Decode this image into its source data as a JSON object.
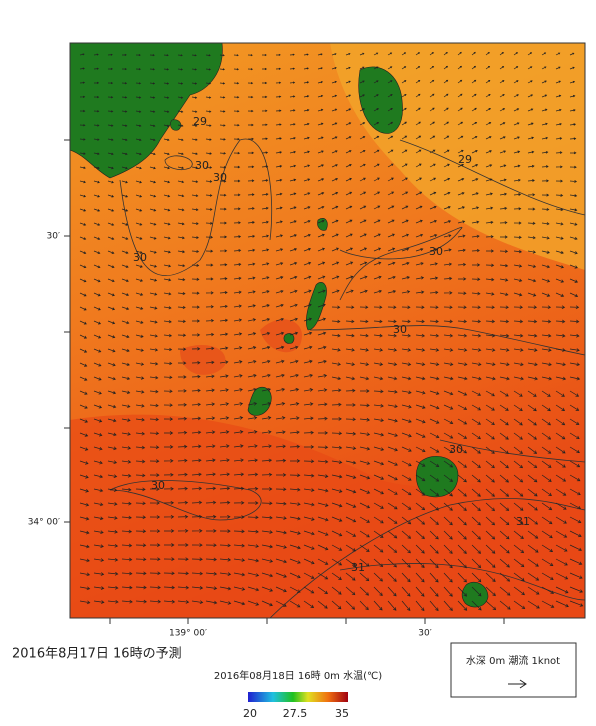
{
  "map": {
    "lat_labels": [
      "30′",
      "34° 00′"
    ],
    "lon_labels": [
      "139° 00′",
      "30′"
    ],
    "contour_labels": [
      "29",
      "30",
      "30",
      "29",
      "30",
      "30",
      "30",
      "30",
      "30",
      "31",
      "31"
    ],
    "title": "2016年8月17日 16時の予測",
    "subtitle": "2016年08月18日 16時 0m 水温(℃)",
    "colorbar_labels": [
      "20",
      "27.5",
      "35"
    ],
    "legend": "水深 0m 潮流 1knot"
  }
}
